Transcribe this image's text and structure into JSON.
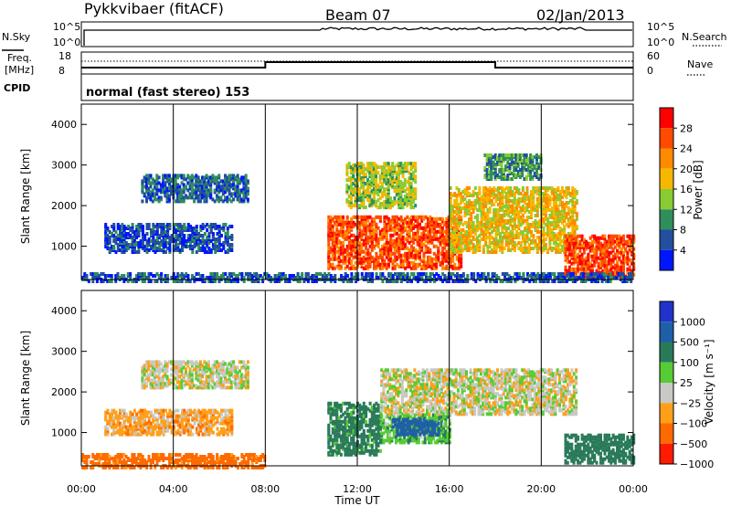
{
  "header": {
    "radar": "Pykkvibaer (fitACF)",
    "beam": "Beam 07",
    "date": "02/Jan/2013"
  },
  "top_panels": {
    "nsky_label": "N.Sky",
    "nsearch_label": "N.Search",
    "freq_label_line1": "Freq.",
    "freq_label_line2": "[MHz]",
    "nave_label": "Nave",
    "cpid_label": "CPID",
    "nsky_ticks": [
      "10^5",
      "10^0"
    ],
    "nsearch_ticks": [
      "10^5",
      "10^0"
    ],
    "freq_ticks": [
      "18",
      "8"
    ],
    "nave_ticks": [
      "60",
      "0"
    ],
    "cpid_text": "normal (fast stereo) 153"
  },
  "power_colorbar": {
    "label": "Power [dB]",
    "ticks": [
      "28",
      "24",
      "20",
      "16",
      "12",
      "8",
      "4"
    ],
    "colors": [
      "#ff0000",
      "#ff4a00",
      "#ff8c00",
      "#f5b800",
      "#88cc33",
      "#2f8f5a",
      "#234f9e",
      "#0016ff"
    ]
  },
  "velocity_colorbar": {
    "label": "Velocity [m s⁻¹]",
    "ticks": [
      "1000",
      "500",
      "100",
      "25",
      "−25",
      "−100",
      "−500",
      "−1000"
    ],
    "colors": [
      "#2233cc",
      "#1f5fa8",
      "#2a7a5a",
      "#55cc33",
      "#c8c8c4",
      "#ff9f1a",
      "#ff6a00",
      "#ff1a00"
    ]
  },
  "chart_data": [
    {
      "type": "heatmap",
      "title": "Power",
      "xlabel": "Time UT",
      "ylabel": "Slant Range [km]",
      "x_ticks": [
        "00:00",
        "04:00",
        "08:00",
        "12:00",
        "16:00",
        "20:00",
        "00:00"
      ],
      "xlim_hours": [
        0,
        24
      ],
      "y_ticks": [
        1000,
        2000,
        3000,
        4000
      ],
      "ylim_km": [
        180,
        4500
      ],
      "cbar_range_db": [
        0,
        32
      ],
      "regions": [
        {
          "t0": 2.6,
          "t1": 7.2,
          "r0": 2150,
          "r1": 2800,
          "db": 7
        },
        {
          "t0": 1.0,
          "t1": 6.5,
          "r0": 900,
          "r1": 1600,
          "db": 5
        },
        {
          "t0": 10.7,
          "t1": 16.5,
          "r0": 500,
          "r1": 1800,
          "db": 26
        },
        {
          "t0": 11.5,
          "t1": 14.5,
          "r0": 2000,
          "r1": 3100,
          "db": 15
        },
        {
          "t0": 16.0,
          "t1": 21.5,
          "r0": 900,
          "r1": 2500,
          "db": 18
        },
        {
          "t0": 17.5,
          "t1": 20.0,
          "r0": 2700,
          "r1": 3300,
          "db": 10
        },
        {
          "t0": 21.0,
          "t1": 24.0,
          "r0": 300,
          "r1": 1300,
          "db": 27
        },
        {
          "t0": 0.0,
          "t1": 24.0,
          "r0": 180,
          "r1": 400,
          "db": 6
        }
      ]
    },
    {
      "type": "heatmap",
      "title": "Velocity",
      "xlabel": "Time UT",
      "ylabel": "Slant Range [km]",
      "x_ticks": [
        "00:00",
        "04:00",
        "08:00",
        "12:00",
        "16:00",
        "20:00",
        "00:00"
      ],
      "xlim_hours": [
        0,
        24
      ],
      "y_ticks": [
        1000,
        2000,
        3000,
        4000
      ],
      "ylim_km": [
        180,
        4500
      ],
      "regions": [
        {
          "t0": 2.6,
          "t1": 7.2,
          "r0": 2150,
          "r1": 2800,
          "v": 0
        },
        {
          "t0": 1.0,
          "t1": 6.5,
          "r0": 1000,
          "r1": 1600,
          "v": -60
        },
        {
          "t0": 10.7,
          "t1": 13.0,
          "r0": 500,
          "r1": 1800,
          "v": 150
        },
        {
          "t0": 13.0,
          "t1": 16.0,
          "r0": 800,
          "r1": 1500,
          "v": 80
        },
        {
          "t0": 13.5,
          "t1": 15.5,
          "r0": 1000,
          "r1": 1400,
          "v": 600
        },
        {
          "t0": 13.0,
          "t1": 21.5,
          "r0": 1500,
          "r1": 2600,
          "v": 0
        },
        {
          "t0": 21.0,
          "t1": 24.0,
          "r0": 300,
          "r1": 1000,
          "v": 300
        },
        {
          "t0": 0.0,
          "t1": 8.0,
          "r0": 180,
          "r1": 500,
          "v": -150
        }
      ]
    }
  ]
}
